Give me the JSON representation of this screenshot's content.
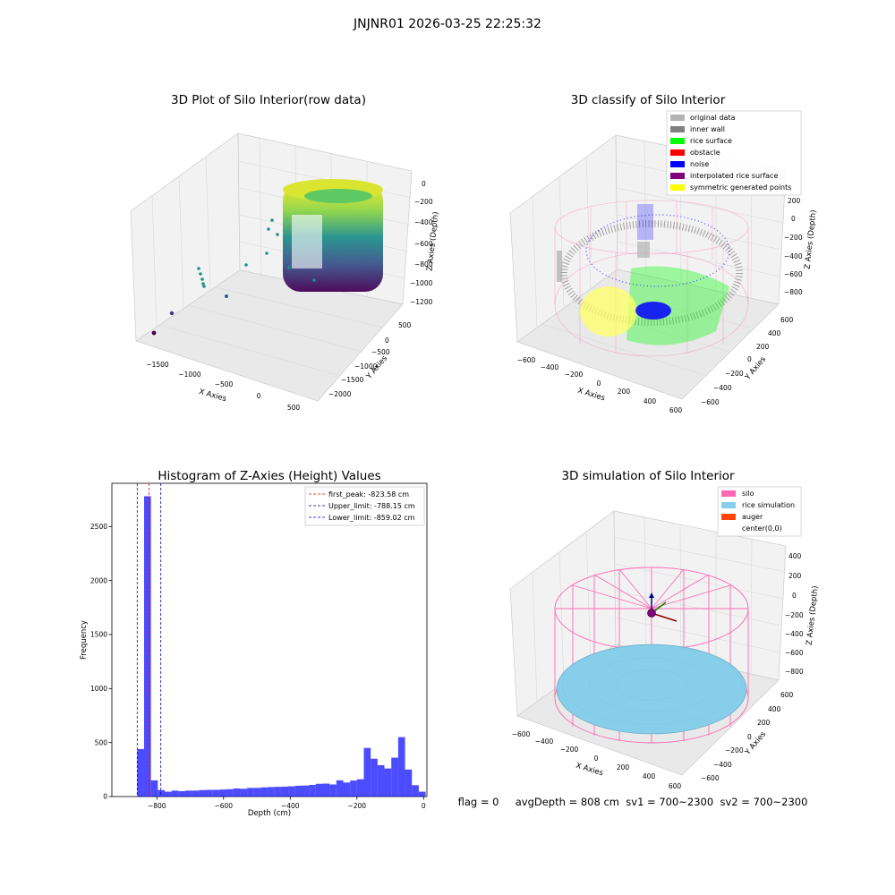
{
  "figure": {
    "suptitle": "JNJNR01 2026-03-25 22:25:32",
    "footer": "flag = 0     avgDepth = 808 cm  sv1 = 700~2300  sv2 = 700~2300"
  },
  "colors": {
    "silo": "#ff69b4",
    "rice_simulation": "#87ceeb",
    "auger": "#ff4500",
    "histogram_bar": "#0000ff",
    "first_peak_line": "#ff0000",
    "upper_limit_line": "#00008b",
    "lower_limit_line": "#0000ff",
    "original_data": "#b3b3b3",
    "inner_wall": "#808080",
    "rice_surface": "#00ff00",
    "obstacle": "#ff0000",
    "noise": "#0000ff",
    "interpolated_rice_surface": "#800080",
    "symmetric_generated_points": "#ffff00"
  },
  "chart_data": [
    {
      "type": "scatter",
      "title": "3D Plot of Silo Interior(row data)",
      "xlabel": "X Axies",
      "ylabel": "Y Axies",
      "zlabel": "Z Axies (Depth)",
      "x_ticks": [
        "−1500",
        "−1000",
        "−500",
        "0",
        "500"
      ],
      "y_ticks": [
        "500",
        "0",
        "−500",
        "−1000",
        "−1500",
        "−2000"
      ],
      "z_ticks": [
        "0",
        "−200",
        "−400",
        "−600",
        "−800",
        "−1000",
        "−1200"
      ],
      "colormap": "viridis",
      "grid": true
    },
    {
      "type": "scatter",
      "title": "3D classify of Silo Interior",
      "xlabel": "X Axies",
      "ylabel": "Y Axies",
      "zlabel": "Z Axies (Depth)",
      "x_ticks": [
        "−600",
        "−400",
        "−200",
        "0",
        "200",
        "400",
        "600"
      ],
      "y_ticks": [
        "600",
        "400",
        "200",
        "0",
        "−200",
        "−400",
        "−600"
      ],
      "z_ticks": [
        "200",
        "0",
        "−200",
        "−400",
        "−600",
        "−800"
      ],
      "legend": [
        "original data",
        "inner wall",
        "rice surface",
        "obstacle",
        "noise",
        "interpolated rice surface",
        "symmetric generated points"
      ],
      "legend_position": "top-right",
      "grid": true
    },
    {
      "type": "bar",
      "title": "Histogram of Z-Axies (Height) Values",
      "xlabel": "Depth (cm)",
      "ylabel": "Frequency",
      "xlim": [
        -935,
        10
      ],
      "ylim": [
        0,
        2900
      ],
      "x_ticks": [
        -800,
        -600,
        -400,
        -200,
        0
      ],
      "x_tick_labels": [
        "−800",
        "−600",
        "−400",
        "−200",
        "0"
      ],
      "y_ticks": [
        0,
        500,
        1000,
        1500,
        2000,
        2500
      ],
      "bin_width": 20.6,
      "bins": [
        {
          "x": -859,
          "value": 440
        },
        {
          "x": -838.4,
          "value": 2780
        },
        {
          "x": -817.8,
          "value": 150
        },
        {
          "x": -797.2,
          "value": 60
        },
        {
          "x": -776.6,
          "value": 45
        },
        {
          "x": -756,
          "value": 55
        },
        {
          "x": -735.4,
          "value": 50
        },
        {
          "x": -714.8,
          "value": 55
        },
        {
          "x": -694.2,
          "value": 55
        },
        {
          "x": -673.6,
          "value": 60
        },
        {
          "x": -653,
          "value": 62
        },
        {
          "x": -632.4,
          "value": 62
        },
        {
          "x": -611.8,
          "value": 65
        },
        {
          "x": -591.2,
          "value": 68
        },
        {
          "x": -570.6,
          "value": 75
        },
        {
          "x": -550,
          "value": 72
        },
        {
          "x": -529.4,
          "value": 80
        },
        {
          "x": -508.8,
          "value": 80
        },
        {
          "x": -488.2,
          "value": 85
        },
        {
          "x": -467.6,
          "value": 88
        },
        {
          "x": -447,
          "value": 90
        },
        {
          "x": -426.4,
          "value": 92
        },
        {
          "x": -405.8,
          "value": 95
        },
        {
          "x": -385.2,
          "value": 100
        },
        {
          "x": -364.6,
          "value": 102
        },
        {
          "x": -344,
          "value": 108
        },
        {
          "x": -323.4,
          "value": 118
        },
        {
          "x": -302.8,
          "value": 120
        },
        {
          "x": -282.2,
          "value": 112
        },
        {
          "x": -261.6,
          "value": 150
        },
        {
          "x": -241,
          "value": 130
        },
        {
          "x": -220.4,
          "value": 148
        },
        {
          "x": -199.8,
          "value": 160
        },
        {
          "x": -179.2,
          "value": 450
        },
        {
          "x": -158.6,
          "value": 350
        },
        {
          "x": -138,
          "value": 290
        },
        {
          "x": -117.4,
          "value": 260
        },
        {
          "x": -96.8,
          "value": 360
        },
        {
          "x": -76.2,
          "value": 550
        },
        {
          "x": -55.6,
          "value": 250
        },
        {
          "x": -35,
          "value": 105
        },
        {
          "x": -14.4,
          "value": 45
        }
      ],
      "lines": [
        {
          "label": "first_peak: -823.58 cm",
          "x": -823.58,
          "color": "#ff0000"
        },
        {
          "label": "Upper_limit: -788.15 cm",
          "x": -788.15,
          "color": "#00008b"
        },
        {
          "label": "Lower_limit: -859.02 cm",
          "x": -859.02,
          "color": "#0000ff"
        }
      ],
      "legend_position": "top-right"
    },
    {
      "type": "scatter",
      "title": "3D simulation of Silo Interior",
      "xlabel": "X Axies",
      "ylabel": "Y Axies",
      "zlabel": "Z Axies (Depth)",
      "x_ticks": [
        "−600",
        "−400",
        "−200",
        "0",
        "200",
        "400",
        "600"
      ],
      "y_ticks": [
        "600",
        "400",
        "200",
        "0",
        "−200",
        "−400",
        "−600"
      ],
      "z_ticks": [
        "400",
        "200",
        "0",
        "−200",
        "−400",
        "−600",
        "−800"
      ],
      "legend": [
        "silo",
        "rice simulation",
        "auger",
        "center(0,0)"
      ],
      "legend_position": "top-right",
      "grid": true
    }
  ]
}
